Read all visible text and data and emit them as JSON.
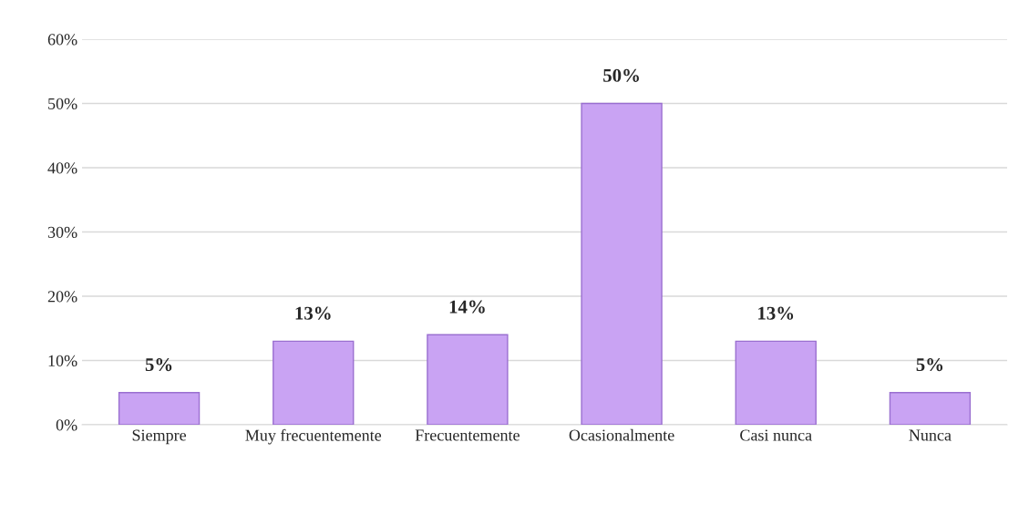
{
  "chart_data": {
    "type": "bar",
    "categories": [
      "Siempre",
      "Muy frecuentemente",
      "Frecuentemente",
      "Ocasionalmente",
      "Casi nunca",
      "Nunca"
    ],
    "values": [
      5,
      13,
      14,
      50,
      13,
      5
    ],
    "value_labels": [
      "5%",
      "13%",
      "14%",
      "50%",
      "13%",
      "5%"
    ],
    "color": "#c9a3f3",
    "ylim": [
      0,
      60
    ],
    "yticks": [
      {
        "value": 0,
        "label": "0%"
      },
      {
        "value": 10,
        "label": "10%"
      },
      {
        "value": 20,
        "label": "20%"
      },
      {
        "value": 30,
        "label": "30%"
      },
      {
        "value": 40,
        "label": "40%"
      },
      {
        "value": 50,
        "label": "50%"
      },
      {
        "value": 60,
        "label": "60%"
      }
    ],
    "grid": "y"
  }
}
